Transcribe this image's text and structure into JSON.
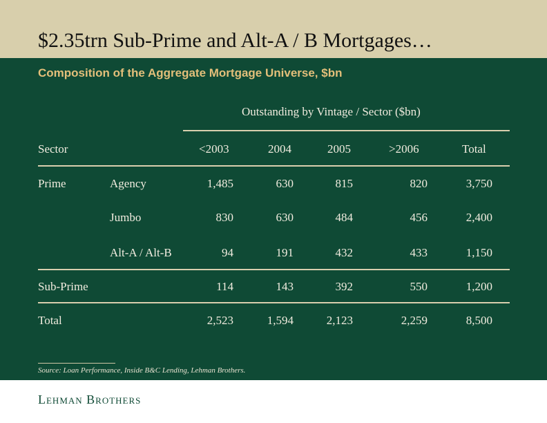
{
  "header": {
    "title": "$2.35trn Sub-Prime and Alt-A / B Mortgages…",
    "subtitle": "Composition of the Aggregate Mortgage Universe, $bn"
  },
  "table": {
    "group_header": "Outstanding by Vintage / Sector ($bn)",
    "sector_header": "Sector",
    "columns": [
      "<2003",
      "2004",
      "2005",
      ">2006",
      "Total"
    ],
    "rows": [
      {
        "sector": "Prime",
        "sub": "Agency",
        "values": [
          "1,485",
          "630",
          "815",
          "820",
          "3,750"
        ]
      },
      {
        "sector": "",
        "sub": "Jumbo",
        "values": [
          "830",
          "630",
          "484",
          "456",
          "2,400"
        ]
      },
      {
        "sector": "",
        "sub": "Alt-A / Alt-B",
        "values": [
          "94",
          "191",
          "432",
          "433",
          "1,150"
        ]
      },
      {
        "sector": "Sub-Prime",
        "sub": "",
        "values": [
          "114",
          "143",
          "392",
          "550",
          "1,200"
        ]
      },
      {
        "sector": "Total",
        "sub": "",
        "values": [
          "2,523",
          "1,594",
          "2,123",
          "2,259",
          "8,500"
        ]
      }
    ]
  },
  "footer": {
    "source": "Source: Loan Performance, Inside B&C Lending, Lehman Brothers.",
    "logo": "Lehman Brothers"
  },
  "colors": {
    "title_band": "#d8cfac",
    "panel_green": "#0f4a35",
    "subtitle_gold": "#e3bf7a"
  }
}
